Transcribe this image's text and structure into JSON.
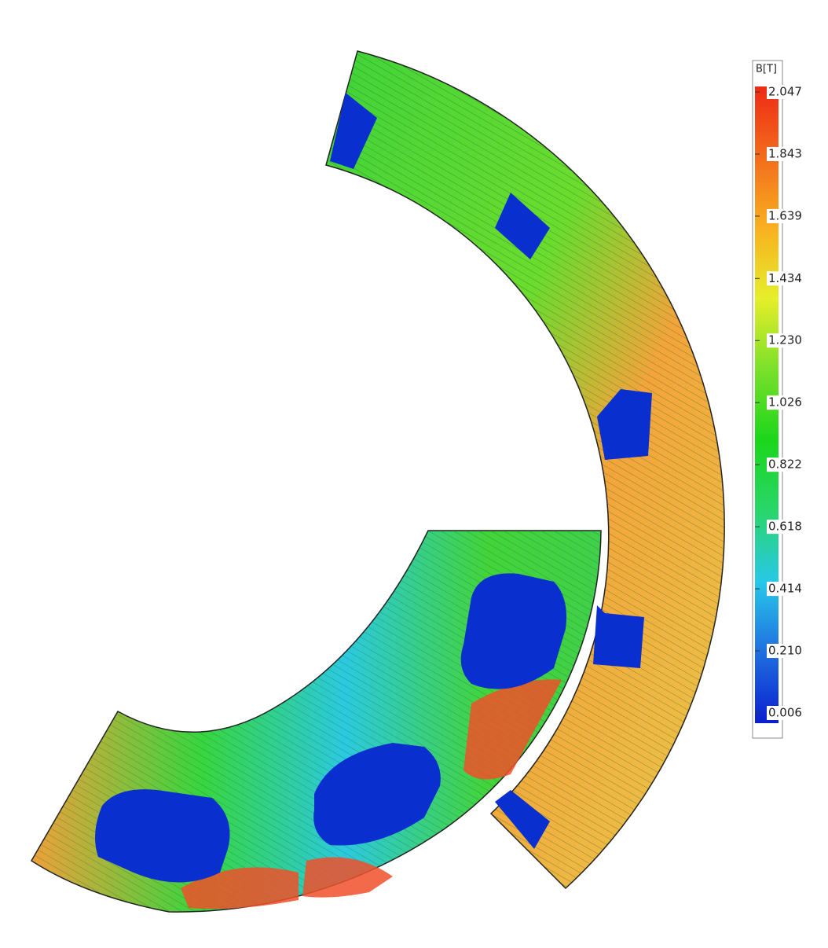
{
  "chart_data": {
    "type": "colormap",
    "title": "B[T]",
    "clim": [
      0.006,
      2.047
    ],
    "colormap": [
      "#0a1fcf",
      "#1f6fe0",
      "#28c8e8",
      "#29d66a",
      "#1bd61b",
      "#7be02a",
      "#e6ee2a",
      "#f8b020",
      "#f36c1c",
      "#ee2a14"
    ],
    "cticks": [
      2.047,
      1.843,
      1.639,
      1.434,
      {
        "value": 1.23,
        "label": "1.230"
      },
      1.026,
      0.822,
      0.618,
      0.414,
      {
        "value": 0.21,
        "label": "0.210"
      },
      0.006
    ]
  }
}
